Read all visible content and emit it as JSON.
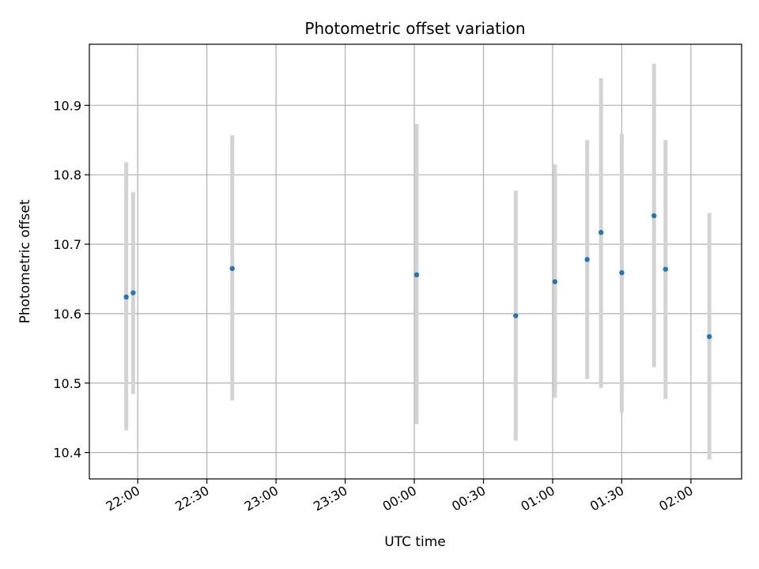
{
  "chart_data": {
    "type": "scatter",
    "title": "Photometric offset variation",
    "xlabel": "UTC time",
    "ylabel": "Photometric offset",
    "x_axis_kind": "time",
    "x_ticks": [
      "22:00",
      "22:30",
      "23:00",
      "23:30",
      "00:00",
      "00:30",
      "01:00",
      "01:30",
      "02:00"
    ],
    "y_ticks": [
      "10.4",
      "10.5",
      "10.6",
      "10.7",
      "10.8",
      "10.9"
    ],
    "y_tick_values": [
      10.4,
      10.5,
      10.6,
      10.7,
      10.8,
      10.9
    ],
    "xlim": [
      "21:39",
      "02:22"
    ],
    "ylim": [
      10.362,
      10.988
    ],
    "grid": true,
    "marker_color": "#1f77b4",
    "errorbar_color": "#d3d3d3",
    "series": [
      {
        "points": [
          {
            "x": "21:55",
            "y": 10.624,
            "ylow": 10.432,
            "yhigh": 10.818
          },
          {
            "x": "21:58",
            "y": 10.63,
            "ylow": 10.484,
            "yhigh": 10.775
          },
          {
            "x": "22:41",
            "y": 10.665,
            "ylow": 10.475,
            "yhigh": 10.857
          },
          {
            "x": "00:01",
            "y": 10.656,
            "ylow": 10.441,
            "yhigh": 10.873
          },
          {
            "x": "00:44",
            "y": 10.597,
            "ylow": 10.417,
            "yhigh": 10.777
          },
          {
            "x": "01:01",
            "y": 10.646,
            "ylow": 10.479,
            "yhigh": 10.815
          },
          {
            "x": "01:15",
            "y": 10.678,
            "ylow": 10.506,
            "yhigh": 10.85
          },
          {
            "x": "01:21",
            "y": 10.717,
            "ylow": 10.493,
            "yhigh": 10.939
          },
          {
            "x": "01:30",
            "y": 10.659,
            "ylow": 10.458,
            "yhigh": 10.859
          },
          {
            "x": "01:44",
            "y": 10.741,
            "ylow": 10.523,
            "yhigh": 10.96
          },
          {
            "x": "01:49",
            "y": 10.664,
            "ylow": 10.477,
            "yhigh": 10.85
          },
          {
            "x": "02:08",
            "y": 10.567,
            "ylow": 10.39,
            "yhigh": 10.745
          }
        ]
      }
    ]
  }
}
